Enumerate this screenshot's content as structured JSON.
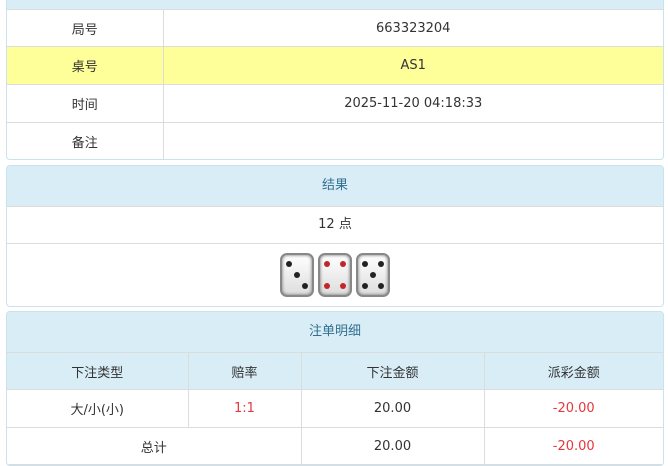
{
  "info": {
    "rows": [
      {
        "label": "局号",
        "value": "663323204"
      },
      {
        "label": "桌号",
        "value": "AS1"
      },
      {
        "label": "时间",
        "value": "2025-11-20 04:18:33"
      },
      {
        "label": "备注",
        "value": ""
      }
    ]
  },
  "result": {
    "title": "结果",
    "points": "12 点",
    "dice": [
      3,
      4,
      5
    ]
  },
  "bets": {
    "title": "注单明细",
    "headers": [
      "下注类型",
      "赔率",
      "下注金额",
      "派彩金额"
    ],
    "rows": [
      {
        "type": "大/小(小)",
        "odds": "1:1",
        "amount": "20.00",
        "payout": "-20.00"
      }
    ],
    "total": {
      "label": "总计",
      "amount": "20.00",
      "payout": "-20.00"
    }
  },
  "colors": {
    "header": "#d9edf7",
    "highlight": "#ffff99",
    "negative": "#e4393c"
  }
}
